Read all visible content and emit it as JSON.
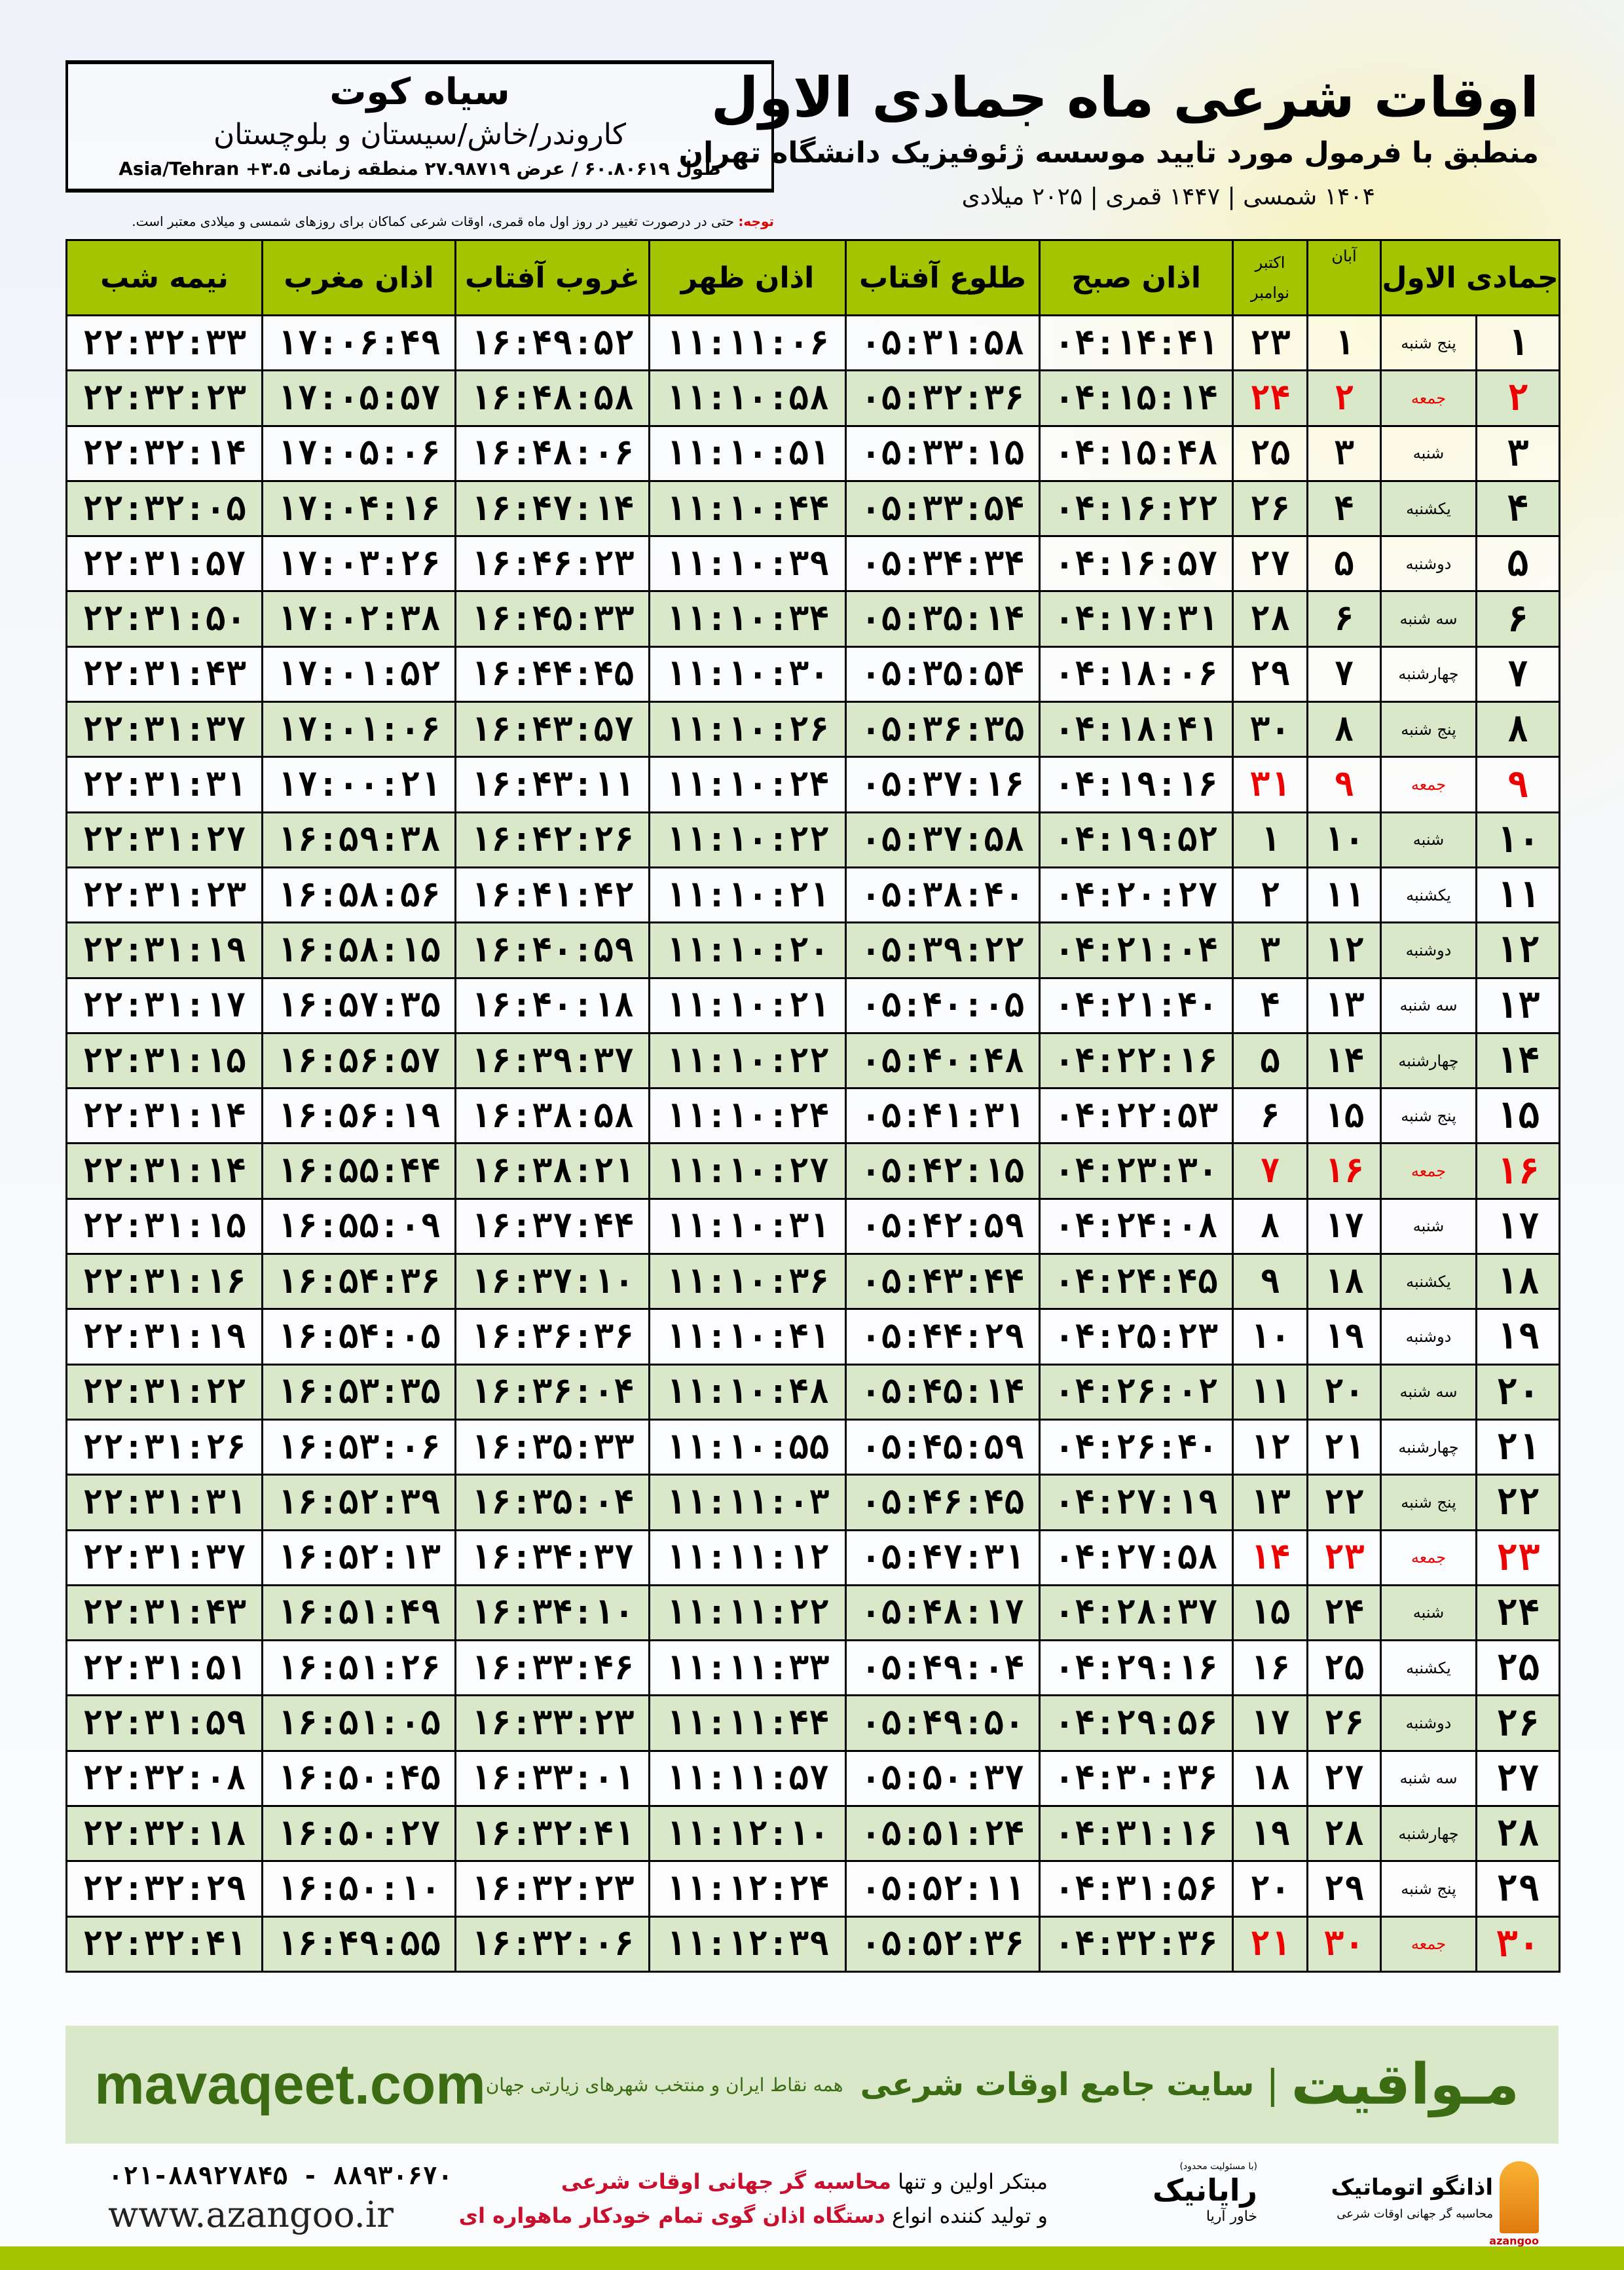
{
  "header": {
    "title": "اوقات شرعی ماه جمادی الاول",
    "subtitle": "منطبق با فرمول مورد تایید موسسه ژئوفیزیک دانشگاه تهران",
    "dates": "۱۴۰۴ شمسی | ۱۴۴۷ قمری | ۲۰۲۵ میلادی"
  },
  "location": {
    "city": "سیاه کوت",
    "province": "کاروندر/خاش/سیستان و بلوچستان",
    "coords": "طول ۶۰.۸۰۶۱۹ / عرض ۲۷.۹۸۷۱۹ منطقه زمانی ۳.۵+ Asia/Tehran"
  },
  "note": {
    "label": "توجه:",
    "text": " حتی در درصورت تغییر در روز اول ماه قمری، اوقات شرعی کماکان برای روزهای شمسی و میلادی معتبر است."
  },
  "table": {
    "headers": {
      "month": "جمادی الاول",
      "aban": "آبان",
      "greg1": "اکتبر",
      "greg2": "نوامبر",
      "fajr": "اذان صبح",
      "sunrise": "طلوع آفتاب",
      "dhuhr": "اذان ظهر",
      "sunset": "غروب آفتاب",
      "maghrib": "اذان مغرب",
      "midnight": "نیمه شب"
    },
    "friday_color": "#e00000",
    "header_color": "#a4c400",
    "even_row_color": "#d9e8c8",
    "rows": [
      [
        "۱",
        "پنج شنبه",
        "۱",
        "۲۳",
        "۰۴:۱۴:۴۱",
        "۰۵:۳۱:۵۸",
        "۱۱:۱۱:۰۶",
        "۱۶:۴۹:۵۲",
        "۱۷:۰۶:۴۹",
        "۲۲:۳۲:۳۳"
      ],
      [
        "۲",
        "جمعه",
        "۲",
        "۲۴",
        "۰۴:۱۵:۱۴",
        "۰۵:۳۲:۳۶",
        "۱۱:۱۰:۵۸",
        "۱۶:۴۸:۵۸",
        "۱۷:۰۵:۵۷",
        "۲۲:۳۲:۲۳"
      ],
      [
        "۳",
        "شنبه",
        "۳",
        "۲۵",
        "۰۴:۱۵:۴۸",
        "۰۵:۳۳:۱۵",
        "۱۱:۱۰:۵۱",
        "۱۶:۴۸:۰۶",
        "۱۷:۰۵:۰۶",
        "۲۲:۳۲:۱۴"
      ],
      [
        "۴",
        "یکشنبه",
        "۴",
        "۲۶",
        "۰۴:۱۶:۲۲",
        "۰۵:۳۳:۵۴",
        "۱۱:۱۰:۴۴",
        "۱۶:۴۷:۱۴",
        "۱۷:۰۴:۱۶",
        "۲۲:۳۲:۰۵"
      ],
      [
        "۵",
        "دوشنبه",
        "۵",
        "۲۷",
        "۰۴:۱۶:۵۷",
        "۰۵:۳۴:۳۴",
        "۱۱:۱۰:۳۹",
        "۱۶:۴۶:۲۳",
        "۱۷:۰۳:۲۶",
        "۲۲:۳۱:۵۷"
      ],
      [
        "۶",
        "سه شنبه",
        "۶",
        "۲۸",
        "۰۴:۱۷:۳۱",
        "۰۵:۳۵:۱۴",
        "۱۱:۱۰:۳۴",
        "۱۶:۴۵:۳۳",
        "۱۷:۰۲:۳۸",
        "۲۲:۳۱:۵۰"
      ],
      [
        "۷",
        "چهارشنبه",
        "۷",
        "۲۹",
        "۰۴:۱۸:۰۶",
        "۰۵:۳۵:۵۴",
        "۱۱:۱۰:۳۰",
        "۱۶:۴۴:۴۵",
        "۱۷:۰۱:۵۲",
        "۲۲:۳۱:۴۳"
      ],
      [
        "۸",
        "پنج شنبه",
        "۸",
        "۳۰",
        "۰۴:۱۸:۴۱",
        "۰۵:۳۶:۳۵",
        "۱۱:۱۰:۲۶",
        "۱۶:۴۳:۵۷",
        "۱۷:۰۱:۰۶",
        "۲۲:۳۱:۳۷"
      ],
      [
        "۹",
        "جمعه",
        "۹",
        "۳۱",
        "۰۴:۱۹:۱۶",
        "۰۵:۳۷:۱۶",
        "۱۱:۱۰:۲۴",
        "۱۶:۴۳:۱۱",
        "۱۷:۰۰:۲۱",
        "۲۲:۳۱:۳۱"
      ],
      [
        "۱۰",
        "شنبه",
        "۱۰",
        "۱",
        "۰۴:۱۹:۵۲",
        "۰۵:۳۷:۵۸",
        "۱۱:۱۰:۲۲",
        "۱۶:۴۲:۲۶",
        "۱۶:۵۹:۳۸",
        "۲۲:۳۱:۲۷"
      ],
      [
        "۱۱",
        "یکشنبه",
        "۱۱",
        "۲",
        "۰۴:۲۰:۲۷",
        "۰۵:۳۸:۴۰",
        "۱۱:۱۰:۲۱",
        "۱۶:۴۱:۴۲",
        "۱۶:۵۸:۵۶",
        "۲۲:۳۱:۲۳"
      ],
      [
        "۱۲",
        "دوشنبه",
        "۱۲",
        "۳",
        "۰۴:۲۱:۰۴",
        "۰۵:۳۹:۲۲",
        "۱۱:۱۰:۲۰",
        "۱۶:۴۰:۵۹",
        "۱۶:۵۸:۱۵",
        "۲۲:۳۱:۱۹"
      ],
      [
        "۱۳",
        "سه شنبه",
        "۱۳",
        "۴",
        "۰۴:۲۱:۴۰",
        "۰۵:۴۰:۰۵",
        "۱۱:۱۰:۲۱",
        "۱۶:۴۰:۱۸",
        "۱۶:۵۷:۳۵",
        "۲۲:۳۱:۱۷"
      ],
      [
        "۱۴",
        "چهارشنبه",
        "۱۴",
        "۵",
        "۰۴:۲۲:۱۶",
        "۰۵:۴۰:۴۸",
        "۱۱:۱۰:۲۲",
        "۱۶:۳۹:۳۷",
        "۱۶:۵۶:۵۷",
        "۲۲:۳۱:۱۵"
      ],
      [
        "۱۵",
        "پنج شنبه",
        "۱۵",
        "۶",
        "۰۴:۲۲:۵۳",
        "۰۵:۴۱:۳۱",
        "۱۱:۱۰:۲۴",
        "۱۶:۳۸:۵۸",
        "۱۶:۵۶:۱۹",
        "۲۲:۳۱:۱۴"
      ],
      [
        "۱۶",
        "جمعه",
        "۱۶",
        "۷",
        "۰۴:۲۳:۳۰",
        "۰۵:۴۲:۱۵",
        "۱۱:۱۰:۲۷",
        "۱۶:۳۸:۲۱",
        "۱۶:۵۵:۴۴",
        "۲۲:۳۱:۱۴"
      ],
      [
        "۱۷",
        "شنبه",
        "۱۷",
        "۸",
        "۰۴:۲۴:۰۸",
        "۰۵:۴۲:۵۹",
        "۱۱:۱۰:۳۱",
        "۱۶:۳۷:۴۴",
        "۱۶:۵۵:۰۹",
        "۲۲:۳۱:۱۵"
      ],
      [
        "۱۸",
        "یکشنبه",
        "۱۸",
        "۹",
        "۰۴:۲۴:۴۵",
        "۰۵:۴۳:۴۴",
        "۱۱:۱۰:۳۶",
        "۱۶:۳۷:۱۰",
        "۱۶:۵۴:۳۶",
        "۲۲:۳۱:۱۶"
      ],
      [
        "۱۹",
        "دوشنبه",
        "۱۹",
        "۱۰",
        "۰۴:۲۵:۲۳",
        "۰۵:۴۴:۲۹",
        "۱۱:۱۰:۴۱",
        "۱۶:۳۶:۳۶",
        "۱۶:۵۴:۰۵",
        "۲۲:۳۱:۱۹"
      ],
      [
        "۲۰",
        "سه شنبه",
        "۲۰",
        "۱۱",
        "۰۴:۲۶:۰۲",
        "۰۵:۴۵:۱۴",
        "۱۱:۱۰:۴۸",
        "۱۶:۳۶:۰۴",
        "۱۶:۵۳:۳۵",
        "۲۲:۳۱:۲۲"
      ],
      [
        "۲۱",
        "چهارشنبه",
        "۲۱",
        "۱۲",
        "۰۴:۲۶:۴۰",
        "۰۵:۴۵:۵۹",
        "۱۱:۱۰:۵۵",
        "۱۶:۳۵:۳۳",
        "۱۶:۵۳:۰۶",
        "۲۲:۳۱:۲۶"
      ],
      [
        "۲۲",
        "پنج شنبه",
        "۲۲",
        "۱۳",
        "۰۴:۲۷:۱۹",
        "۰۵:۴۶:۴۵",
        "۱۱:۱۱:۰۳",
        "۱۶:۳۵:۰۴",
        "۱۶:۵۲:۳۹",
        "۲۲:۳۱:۳۱"
      ],
      [
        "۲۳",
        "جمعه",
        "۲۳",
        "۱۴",
        "۰۴:۲۷:۵۸",
        "۰۵:۴۷:۳۱",
        "۱۱:۱۱:۱۲",
        "۱۶:۳۴:۳۷",
        "۱۶:۵۲:۱۳",
        "۲۲:۳۱:۳۷"
      ],
      [
        "۲۴",
        "شنبه",
        "۲۴",
        "۱۵",
        "۰۴:۲۸:۳۷",
        "۰۵:۴۸:۱۷",
        "۱۱:۱۱:۲۲",
        "۱۶:۳۴:۱۰",
        "۱۶:۵۱:۴۹",
        "۲۲:۳۱:۴۳"
      ],
      [
        "۲۵",
        "یکشنبه",
        "۲۵",
        "۱۶",
        "۰۴:۲۹:۱۶",
        "۰۵:۴۹:۰۴",
        "۱۱:۱۱:۳۳",
        "۱۶:۳۳:۴۶",
        "۱۶:۵۱:۲۶",
        "۲۲:۳۱:۵۱"
      ],
      [
        "۲۶",
        "دوشنبه",
        "۲۶",
        "۱۷",
        "۰۴:۲۹:۵۶",
        "۰۵:۴۹:۵۰",
        "۱۱:۱۱:۴۴",
        "۱۶:۳۳:۲۳",
        "۱۶:۵۱:۰۵",
        "۲۲:۳۱:۵۹"
      ],
      [
        "۲۷",
        "سه شنبه",
        "۲۷",
        "۱۸",
        "۰۴:۳۰:۳۶",
        "۰۵:۵۰:۳۷",
        "۱۱:۱۱:۵۷",
        "۱۶:۳۳:۰۱",
        "۱۶:۵۰:۴۵",
        "۲۲:۳۲:۰۸"
      ],
      [
        "۲۸",
        "چهارشنبه",
        "۲۸",
        "۱۹",
        "۰۴:۳۱:۱۶",
        "۰۵:۵۱:۲۴",
        "۱۱:۱۲:۱۰",
        "۱۶:۳۲:۴۱",
        "۱۶:۵۰:۲۷",
        "۲۲:۳۲:۱۸"
      ],
      [
        "۲۹",
        "پنج شنبه",
        "۲۹",
        "۲۰",
        "۰۴:۳۱:۵۶",
        "۰۵:۵۲:۱۱",
        "۱۱:۱۲:۲۴",
        "۱۶:۳۲:۲۳",
        "۱۶:۵۰:۱۰",
        "۲۲:۳۲:۲۹"
      ],
      [
        "۳۰",
        "جمعه",
        "۳۰",
        "۲۱",
        "۰۴:۳۲:۳۶",
        "۰۵:۵۲:۳۶",
        "۱۱:۱۲:۳۹",
        "۱۶:۳۲:۰۶",
        "۱۶:۴۹:۵۵",
        "۲۲:۳۲:۴۱"
      ]
    ]
  },
  "footer": {
    "brand": "مـواقیت",
    "tagline": "سایت جامع اوقات شرعی",
    "tagline2": "همه نقاط ایران و منتخب شهرهای زیارتی جهان",
    "site": "mavaqeet.com",
    "ad_line1_a": "مبتکر اولین و تنها ",
    "ad_line1_b": "محاسبه گر جهانی اوقات شرعی",
    "ad_line2_a": "و تولید کننده انواع ",
    "ad_line2_b": "دستگاه اذان گوی تمام خودکار ماهواره ای",
    "phone": "۰۲۱-۸۸۹۲۷۸۴۵ - ۸۸۹۳۰۶۷۰",
    "www": "www.azangoo.ir",
    "logo1_name": "اذانگو اتوماتیک",
    "logo1_sub": "محاسبه گر جهانی اوقات شرعی",
    "logo1_latin": "azangoo",
    "logo2_name": "رایانیک",
    "logo2_sub": "خاور آریا",
    "logo2_note": "(با مسئولیت محدود)",
    "brand_color": "#3b6b12",
    "accent_red": "#c8102e"
  }
}
